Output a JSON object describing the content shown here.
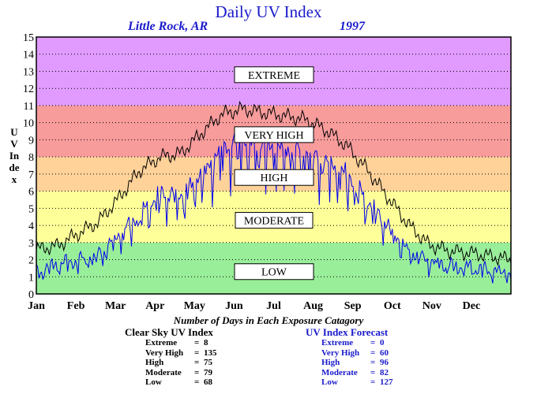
{
  "header": {
    "title": "Daily UV Index",
    "location": "Little Rock, AR",
    "year": "1997"
  },
  "chart_data": {
    "type": "line",
    "title": "Daily UV Index",
    "ylabel": "UV Index",
    "ylim": [
      0,
      15
    ],
    "yticks": [
      "0",
      "1",
      "2",
      "3",
      "4",
      "5",
      "6",
      "7",
      "8",
      "9",
      "10",
      "11",
      "12",
      "13",
      "14",
      "15"
    ],
    "months": [
      "Jan",
      "Feb",
      "Mar",
      "Apr",
      "May",
      "Jun",
      "Jul",
      "Aug",
      "Sep",
      "Oct",
      "Nov",
      "Dec"
    ],
    "grid": true,
    "bands": [
      {
        "label": "LOW",
        "from": 0,
        "to": 3,
        "color": "#99ee99",
        "label_y": 1.3
      },
      {
        "label": "MODERATE",
        "from": 3,
        "to": 6,
        "color": "#ffff99",
        "label_y": 4.3
      },
      {
        "label": "HIGH",
        "from": 6,
        "to": 8,
        "color": "#ffd299",
        "label_y": 6.8
      },
      {
        "label": "VERY HIGH",
        "from": 8,
        "to": 11,
        "color": "#f79b9b",
        "label_y": 9.3
      },
      {
        "label": "EXTREME",
        "from": 11,
        "to": 15,
        "color": "#e19bff",
        "label_y": 12.8
      }
    ],
    "series": [
      {
        "name": "Clear Sky UV Index",
        "color": "#000000",
        "values": [
          2.6,
          2.8,
          3.5,
          4.2,
          5.6,
          7.2,
          8.0,
          8.2,
          9.4,
          10.5,
          10.8,
          10.6,
          10.4,
          10.2,
          9.6,
          8.7,
          7.3,
          5.7,
          4.1,
          2.9,
          2.5,
          2.4,
          2.2,
          2.0
        ]
      },
      {
        "name": "UV Index Forecast",
        "color": "#0000ee",
        "values": [
          1.3,
          1.8,
          2.0,
          2.3,
          3.5,
          4.7,
          6.0,
          5.8,
          7.2,
          8.6,
          9.2,
          8.8,
          8.6,
          8.4,
          7.8,
          7.2,
          5.6,
          4.1,
          2.6,
          2.0,
          1.7,
          1.6,
          1.4,
          1.3
        ]
      }
    ]
  },
  "footer": {
    "caption": "Number of Days in Each Exposure Catagory",
    "clear_sky": {
      "heading": "Clear Sky UV Index",
      "rows": [
        {
          "label": "Extreme",
          "value": "8"
        },
        {
          "label": "Very High",
          "value": "135"
        },
        {
          "label": "High",
          "value": "75"
        },
        {
          "label": "Moderate",
          "value": "79"
        },
        {
          "label": "Low",
          "value": "68"
        }
      ]
    },
    "forecast": {
      "heading": "UV Index Forecast",
      "rows": [
        {
          "label": "Extreme",
          "value": "0"
        },
        {
          "label": "Very High",
          "value": "60"
        },
        {
          "label": "High",
          "value": "96"
        },
        {
          "label": "Moderate",
          "value": "82"
        },
        {
          "label": "Low",
          "value": "127"
        }
      ]
    }
  }
}
